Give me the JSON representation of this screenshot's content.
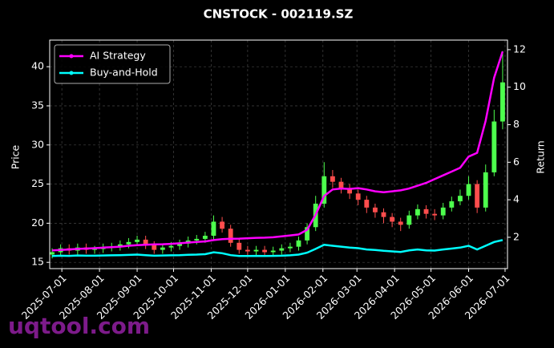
{
  "chart_data": {
    "type": "candlestick",
    "title": "CNSTOCK - 002119.SZ",
    "watermark": "uqtool.com",
    "y_label": "Price",
    "y2_label": "Return",
    "x": [
      "2025-06-23",
      "2025-06-30",
      "2025-07-07",
      "2025-07-14",
      "2025-07-21",
      "2025-07-28",
      "2025-08-04",
      "2025-08-11",
      "2025-08-18",
      "2025-08-25",
      "2025-09-01",
      "2025-09-08",
      "2025-09-15",
      "2025-09-22",
      "2025-09-29",
      "2025-10-06",
      "2025-10-13",
      "2025-10-20",
      "2025-10-27",
      "2025-11-03",
      "2025-11-10",
      "2025-11-17",
      "2025-11-24",
      "2025-12-01",
      "2025-12-08",
      "2025-12-15",
      "2025-12-22",
      "2025-12-29",
      "2026-01-05",
      "2026-01-12",
      "2026-01-19",
      "2026-01-26",
      "2026-02-02",
      "2026-02-09",
      "2026-02-16",
      "2026-02-23",
      "2026-03-02",
      "2026-03-09",
      "2026-03-16",
      "2026-03-23",
      "2026-03-30",
      "2026-04-06",
      "2026-04-13",
      "2026-04-20",
      "2026-04-27",
      "2026-05-04",
      "2026-05-11",
      "2026-05-18",
      "2026-05-25",
      "2026-06-01",
      "2026-06-08",
      "2026-06-15",
      "2026-06-22",
      "2026-06-29"
    ],
    "open": [
      16.0,
      16.3,
      16.8,
      16.5,
      16.9,
      16.6,
      16.7,
      16.9,
      17.0,
      17.3,
      17.6,
      17.9,
      17.2,
      16.6,
      16.9,
      17.1,
      17.4,
      17.8,
      18.0,
      18.4,
      20.2,
      19.3,
      17.5,
      16.6,
      16.4,
      16.6,
      16.3,
      16.5,
      16.8,
      17.0,
      17.8,
      19.5,
      22.5,
      26.0,
      25.3,
      24.5,
      23.8,
      23.0,
      22.0,
      21.4,
      20.8,
      20.2,
      19.8,
      21.0,
      21.8,
      21.2,
      21.0,
      22.0,
      22.8,
      23.5,
      25.0,
      22.0,
      26.5,
      33.0
    ],
    "high": [
      16.8,
      17.3,
      17.3,
      17.4,
      17.4,
      17.1,
      17.4,
      17.5,
      17.8,
      18.1,
      18.4,
      18.4,
      17.7,
      17.4,
      17.6,
      17.9,
      18.3,
      18.5,
      18.9,
      21.0,
      20.8,
      19.8,
      18.0,
      17.1,
      17.1,
      17.1,
      17.0,
      17.3,
      17.5,
      18.3,
      20.0,
      23.5,
      27.8,
      26.8,
      25.8,
      25.0,
      24.3,
      23.5,
      22.5,
      21.9,
      21.3,
      20.7,
      21.6,
      22.4,
      22.3,
      21.8,
      22.6,
      23.4,
      24.3,
      26.0,
      25.5,
      27.5,
      34.5,
      42.0
    ],
    "low": [
      15.5,
      15.8,
      16.0,
      16.0,
      16.1,
      16.1,
      16.2,
      16.4,
      16.5,
      16.8,
      17.1,
      16.7,
      16.1,
      16.1,
      16.4,
      16.6,
      16.9,
      17.3,
      17.5,
      17.9,
      18.8,
      17.0,
      16.1,
      15.9,
      15.9,
      15.8,
      15.8,
      16.0,
      16.3,
      16.5,
      17.3,
      19.0,
      22.0,
      24.5,
      23.8,
      23.1,
      22.3,
      21.3,
      20.7,
      20.0,
      19.5,
      19.0,
      19.3,
      20.5,
      20.6,
      20.4,
      20.5,
      21.5,
      22.3,
      23.0,
      21.3,
      21.5,
      26.0,
      32.0
    ],
    "close": [
      16.3,
      16.8,
      16.5,
      16.9,
      16.6,
      16.7,
      16.9,
      17.0,
      17.3,
      17.6,
      17.9,
      17.2,
      16.6,
      16.9,
      17.1,
      17.4,
      17.8,
      18.0,
      18.4,
      20.2,
      19.3,
      17.5,
      16.6,
      16.4,
      16.6,
      16.3,
      16.5,
      16.8,
      17.0,
      17.8,
      19.5,
      22.5,
      26.0,
      25.3,
      24.5,
      23.8,
      23.0,
      22.0,
      21.4,
      20.8,
      20.2,
      19.8,
      21.0,
      21.8,
      21.2,
      21.0,
      22.0,
      22.8,
      23.5,
      25.0,
      22.0,
      26.5,
      33.0,
      38.0
    ],
    "up_color": "#4dff4d",
    "down_color": "#ff4d4d",
    "series": [
      {
        "name": "AI Strategy",
        "color": "#ff00ff",
        "axis": "y2",
        "values": [
          1.3,
          1.32,
          1.35,
          1.38,
          1.4,
          1.42,
          1.45,
          1.47,
          1.5,
          1.55,
          1.58,
          1.6,
          1.62,
          1.63,
          1.65,
          1.68,
          1.72,
          1.75,
          1.78,
          1.85,
          1.9,
          1.92,
          1.93,
          1.95,
          1.97,
          1.98,
          2.0,
          2.05,
          2.1,
          2.15,
          2.4,
          3.2,
          4.2,
          4.55,
          4.6,
          4.58,
          4.62,
          4.55,
          4.45,
          4.4,
          4.45,
          4.5,
          4.6,
          4.75,
          4.9,
          5.1,
          5.3,
          5.5,
          5.7,
          6.3,
          6.5,
          8.2,
          10.5,
          11.9
        ]
      },
      {
        "name": "Buy-and-Hold",
        "color": "#00ffff",
        "axis": "y2",
        "values": [
          1.0,
          1.02,
          1.01,
          1.03,
          1.02,
          1.02,
          1.03,
          1.04,
          1.05,
          1.06,
          1.08,
          1.05,
          1.02,
          1.03,
          1.04,
          1.05,
          1.07,
          1.08,
          1.1,
          1.2,
          1.15,
          1.05,
          1.0,
          1.0,
          1.01,
          1.0,
          1.01,
          1.02,
          1.04,
          1.08,
          1.18,
          1.38,
          1.6,
          1.55,
          1.5,
          1.45,
          1.42,
          1.35,
          1.32,
          1.28,
          1.25,
          1.22,
          1.3,
          1.35,
          1.3,
          1.29,
          1.35,
          1.4,
          1.45,
          1.55,
          1.35,
          1.55,
          1.75,
          1.85
        ]
      }
    ],
    "xlim": [
      "2025-06-21",
      "2026-07-03"
    ],
    "xticks": [
      "2025-07-01",
      "2025-08-01",
      "2025-09-01",
      "2025-10-01",
      "2025-11-01",
      "2025-12-01",
      "2026-01-01",
      "2026-02-01",
      "2026-03-01",
      "2026-04-01",
      "2026-05-01",
      "2026-06-01",
      "2026-07-01"
    ],
    "ylim": [
      14.2,
      43.4
    ],
    "yticks": [
      15,
      20,
      25,
      30,
      35,
      40
    ],
    "y2lim": [
      0.33,
      12.51
    ],
    "y2ticks": [
      2,
      4,
      6,
      8,
      10,
      12
    ],
    "grid": true,
    "legend": "upper left"
  }
}
